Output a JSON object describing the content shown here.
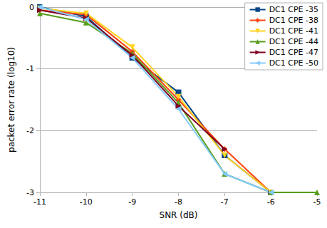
{
  "chart_data": {
    "type": "line",
    "x_label": "SNR (dB)",
    "y_label": "packet error rate (log10)",
    "x": [
      -11,
      -10,
      -9,
      -8,
      -7,
      -6,
      -5
    ],
    "xlim": [
      -11,
      -5
    ],
    "xticks": [
      -11,
      -10,
      -9,
      -8,
      -7,
      -6,
      -5
    ],
    "ylim": [
      -3,
      0
    ],
    "yticks": [
      -3,
      -2,
      -1,
      0
    ],
    "grid": true,
    "legend": "top-right",
    "series": [
      {
        "name": "DC1 CPE -35",
        "color": "#004586",
        "marker": "square",
        "values": [
          0,
          -0.15,
          -0.82,
          -1.38,
          -2.4,
          -3,
          null
        ]
      },
      {
        "name": "DC1 CPE -38",
        "color": "#ff420e",
        "marker": "diamond",
        "values": [
          -0.05,
          -0.12,
          -0.72,
          -1.5,
          -2.3,
          -3,
          null
        ]
      },
      {
        "name": "DC1 CPE -41",
        "color": "#ffd320",
        "marker": "triangle-down",
        "values": [
          -0.02,
          -0.1,
          -0.65,
          -1.45,
          -2.4,
          -3,
          null
        ]
      },
      {
        "name": "DC1 CPE -44",
        "color": "#579d1c",
        "marker": "triangle",
        "values": [
          -0.1,
          -0.25,
          -0.75,
          -1.55,
          -2.7,
          -3,
          -3
        ]
      },
      {
        "name": "DC1 CPE -47",
        "color": "#7e0021",
        "marker": "triangle-right",
        "values": [
          -0.05,
          -0.18,
          -0.78,
          -1.6,
          -2.3,
          null,
          null
        ]
      },
      {
        "name": "DC1 CPE -50",
        "color": "#83caff",
        "marker": "triangle-left",
        "values": [
          0,
          -0.2,
          -0.82,
          -1.65,
          -2.7,
          -3,
          null
        ]
      }
    ]
  }
}
